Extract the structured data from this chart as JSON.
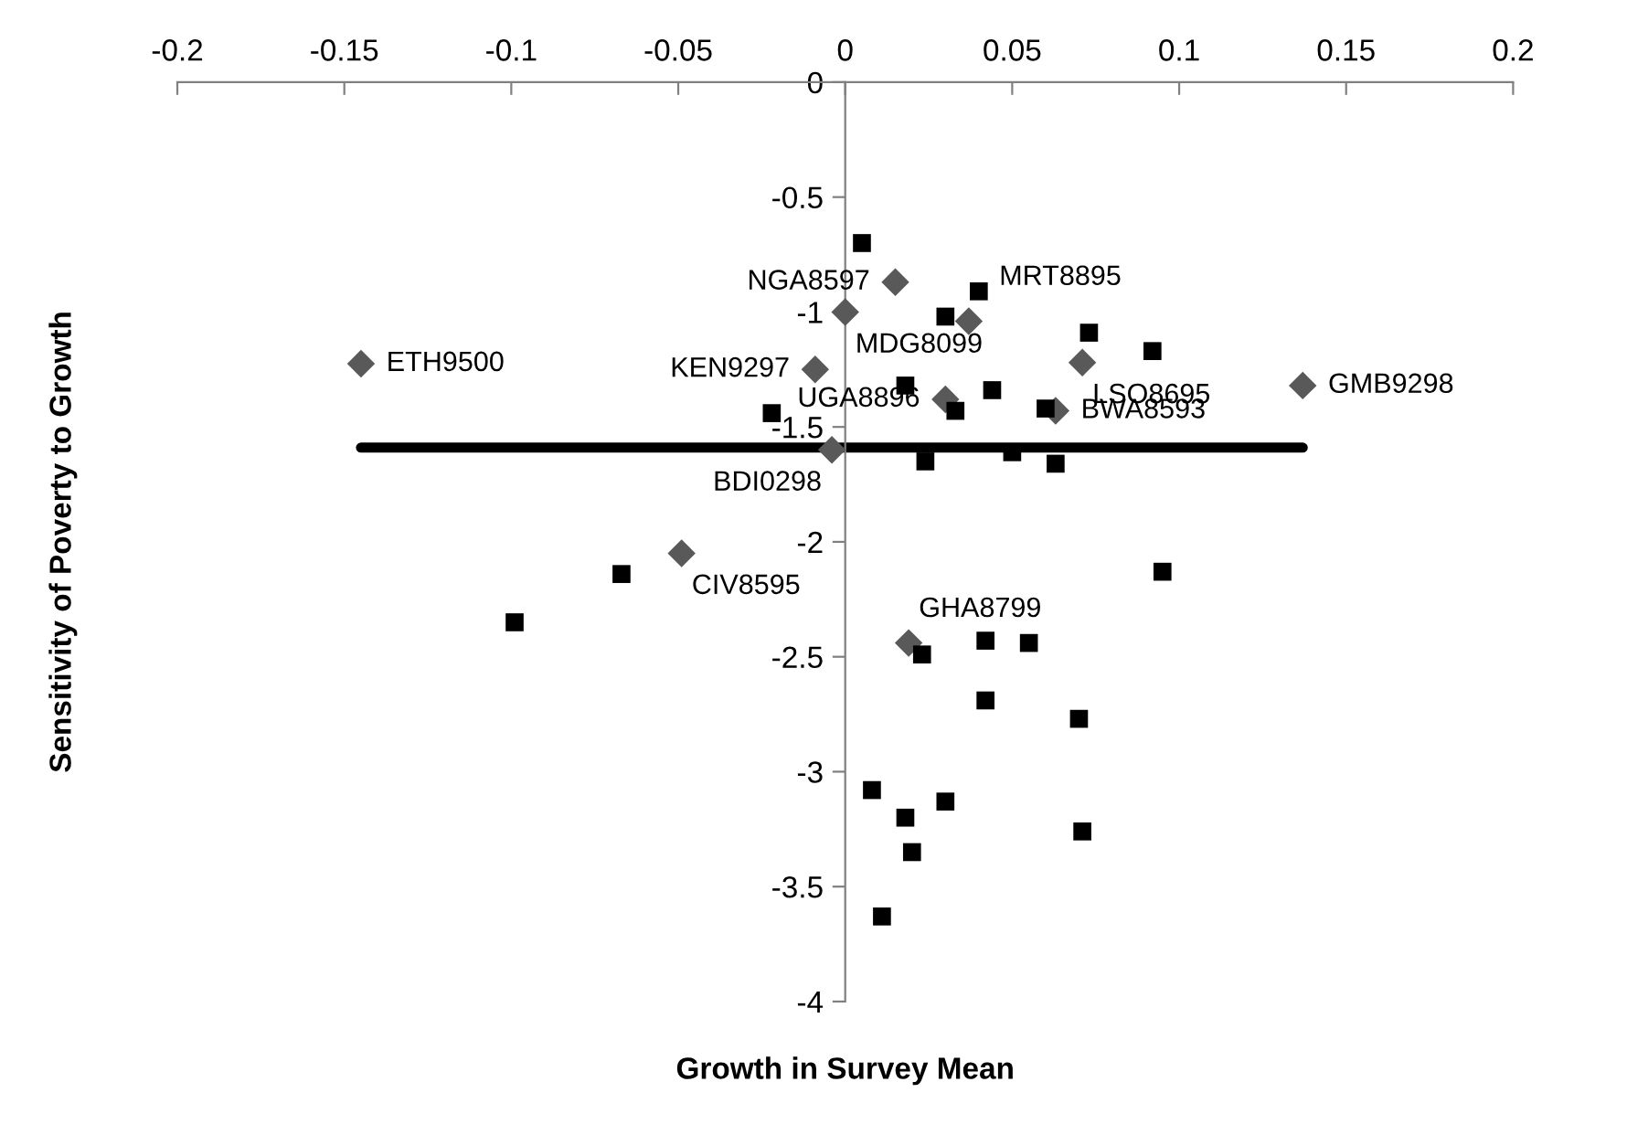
{
  "chart_data": {
    "type": "scatter",
    "xlabel": "Growth in Survey Mean",
    "ylabel": "Sensitivity of Poverty to Growth",
    "xlim": [
      -0.2,
      0.2
    ],
    "xticks": [
      -0.2,
      -0.15,
      -0.1,
      -0.05,
      0,
      0.05,
      0.1,
      0.15,
      0.2
    ],
    "ylim": [
      -4,
      0
    ],
    "yticks": [
      -4,
      -3.5,
      -3,
      -2.5,
      -2,
      -1.5,
      -1,
      -0.5,
      0
    ],
    "grid": false,
    "legend": false,
    "series": [
      {
        "marker": "diamond",
        "color": "#595959",
        "x": [
          -0.145,
          0,
          0.015,
          0.037,
          -0.009,
          0.071,
          0.137,
          0.03,
          0.063,
          -0.004,
          -0.049,
          0.019
        ],
        "values": [
          -1.225,
          -1.0,
          -0.87,
          -1.04,
          -1.25,
          -1.22,
          -1.32,
          -1.38,
          -1.43,
          -1.6,
          -2.05,
          -2.44
        ]
      },
      {
        "marker": "square",
        "color": "#000000",
        "x": [
          0.005,
          0.04,
          0.03,
          0.073,
          0.092,
          0.018,
          0.044,
          0.033,
          0.06,
          0.024,
          0.05,
          0.063,
          0.095,
          -0.022,
          -0.067,
          -0.099,
          0.023,
          0.042,
          0.055,
          0.042,
          0.07,
          0.008,
          0.018,
          0.02,
          0.03,
          0.071,
          0.011
        ],
        "values": [
          -0.7,
          -0.91,
          -1.02,
          -1.09,
          -1.17,
          -1.32,
          -1.34,
          -1.43,
          -1.42,
          -1.65,
          -1.61,
          -1.66,
          -2.13,
          -1.44,
          -2.14,
          -2.35,
          -2.49,
          -2.43,
          -2.44,
          -2.69,
          -2.77,
          -3.08,
          -3.2,
          -3.35,
          -3.13,
          -3.26,
          -3.63
        ]
      },
      {
        "type": "line",
        "marker": "none",
        "line_style": "solid",
        "color": "#000000",
        "x": [
          -0.145,
          0.137
        ],
        "values": [
          -1.59,
          -1.59
        ]
      }
    ],
    "annotations": [
      {
        "text": "ETH9500",
        "x": -0.145,
        "y": -1.225
      },
      {
        "text": "MDG8099",
        "x": 0,
        "y": -1.0
      },
      {
        "text": "NGA8597",
        "x": 0.015,
        "y": -0.87
      },
      {
        "text": "MRT8895",
        "x": 0.037,
        "y": -1.04
      },
      {
        "text": "KEN9297",
        "x": -0.009,
        "y": -1.25
      },
      {
        "text": "LSO8695",
        "x": 0.071,
        "y": -1.22
      },
      {
        "text": "GMB9298",
        "x": 0.137,
        "y": -1.32
      },
      {
        "text": "UGA8896",
        "x": 0.03,
        "y": -1.38
      },
      {
        "text": "BWA8593",
        "x": 0.063,
        "y": -1.43
      },
      {
        "text": "BDI0298",
        "x": -0.004,
        "y": -1.6
      },
      {
        "text": "CIV8595",
        "x": -0.049,
        "y": -2.05
      },
      {
        "text": "GHA8799",
        "x": 0.019,
        "y": -2.44
      }
    ]
  }
}
